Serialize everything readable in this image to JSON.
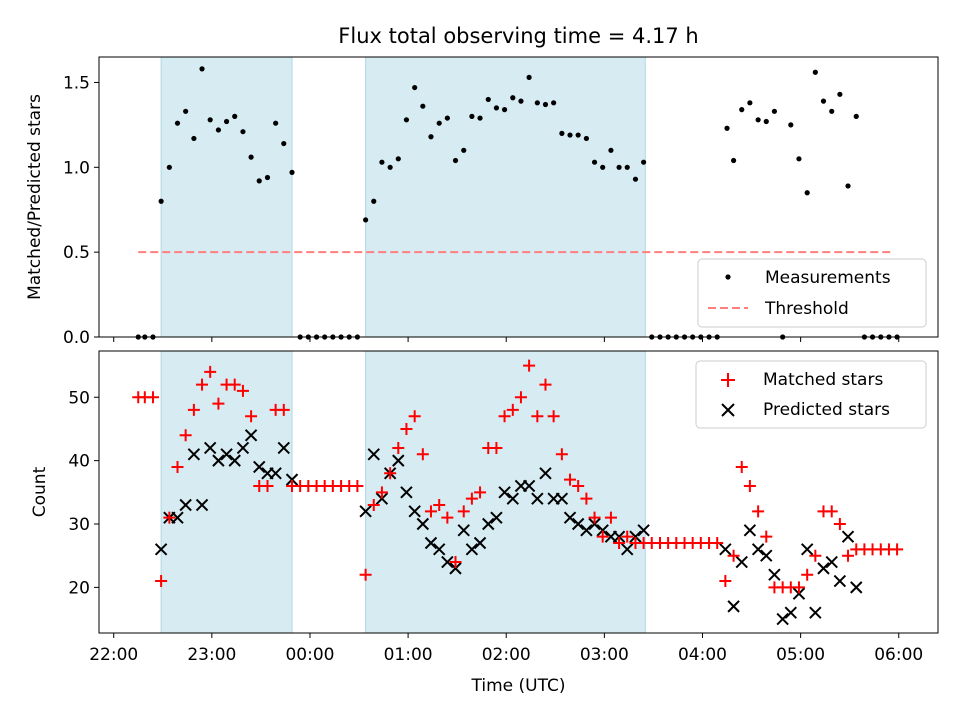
{
  "chart_data": [
    {
      "type": "scatter",
      "title": "Flux total observing time = 4.17 h",
      "xlabel": "",
      "ylabel": "Matched/Predicted stars",
      "xlim_hours": [
        21.85,
        30.4
      ],
      "ylim": [
        0,
        1.65
      ],
      "xticks": [
        22,
        23,
        24,
        25,
        26,
        27,
        28,
        29,
        30
      ],
      "yticks": [
        0.0,
        0.5,
        1.0,
        1.5
      ],
      "ytick_labels": [
        "0.0",
        "0.5",
        "1.0",
        "1.5"
      ],
      "observing_windows_hours": [
        [
          22.483,
          23.817
        ],
        [
          24.567,
          27.417
        ]
      ],
      "threshold": {
        "y": 0.5,
        "x_range": [
          22.25,
          29.95
        ],
        "color": "#ff7f7f"
      },
      "legend": {
        "position": "lower-right",
        "entries": [
          "Measurements",
          "Threshold"
        ]
      },
      "series": [
        {
          "name": "Measurements",
          "color": "#000000",
          "x": [
            22.25,
            22.317,
            22.4,
            22.483,
            22.567,
            22.65,
            22.733,
            22.817,
            22.9,
            22.983,
            23.067,
            23.15,
            23.233,
            23.317,
            23.4,
            23.483,
            23.567,
            23.65,
            23.733,
            23.817,
            23.9,
            23.983,
            24.067,
            24.15,
            24.233,
            24.317,
            24.4,
            24.483,
            24.567,
            24.65,
            24.733,
            24.817,
            24.9,
            24.983,
            25.067,
            25.15,
            25.233,
            25.317,
            25.4,
            25.483,
            25.567,
            25.65,
            25.733,
            25.817,
            25.9,
            25.983,
            26.067,
            26.15,
            26.233,
            26.317,
            26.4,
            26.483,
            26.567,
            26.65,
            26.733,
            26.817,
            26.9,
            26.983,
            27.067,
            27.15,
            27.233,
            27.317,
            27.4,
            27.483,
            27.567,
            27.65,
            27.733,
            27.817,
            27.9,
            27.983,
            28.067,
            28.15,
            28.25,
            28.317,
            28.4,
            28.483,
            28.567,
            28.65,
            28.733,
            28.817,
            28.9,
            28.983,
            29.067,
            29.15,
            29.233,
            29.317,
            29.4,
            29.483,
            29.567,
            29.65,
            29.733,
            29.817,
            29.9,
            29.983
          ],
          "y": [
            0,
            0,
            0,
            0.8,
            1.0,
            1.26,
            1.33,
            1.17,
            1.58,
            1.28,
            1.22,
            1.27,
            1.3,
            1.21,
            1.06,
            0.92,
            0.94,
            1.26,
            1.14,
            0.97,
            0,
            0,
            0,
            0,
            0,
            0,
            0,
            0,
            0.69,
            0.8,
            1.03,
            1.0,
            1.05,
            1.28,
            1.47,
            1.36,
            1.18,
            1.26,
            1.29,
            1.04,
            1.1,
            1.3,
            1.29,
            1.4,
            1.35,
            1.34,
            1.41,
            1.39,
            1.53,
            1.38,
            1.37,
            1.38,
            1.2,
            1.19,
            1.19,
            1.17,
            1.03,
            1.0,
            1.1,
            1.0,
            1.0,
            0.93,
            1.03,
            0,
            0,
            0,
            0,
            0,
            0,
            0,
            0,
            0,
            1.23,
            1.04,
            1.34,
            1.38,
            1.28,
            1.27,
            1.33,
            0,
            1.25,
            1.05,
            0.85,
            1.56,
            1.39,
            1.33,
            1.43,
            0.89,
            1.3,
            0,
            0,
            0,
            0,
            0
          ]
        }
      ]
    },
    {
      "type": "scatter",
      "title": "",
      "xlabel": "Time (UTC)",
      "ylabel": "Count",
      "xlim_hours": [
        21.85,
        30.4
      ],
      "ylim": [
        12.8,
        57.3
      ],
      "xticks": [
        22,
        23,
        24,
        25,
        26,
        27,
        28,
        29,
        30
      ],
      "xtick_labels": [
        "22:00",
        "23:00",
        "00:00",
        "01:00",
        "02:00",
        "03:00",
        "04:00",
        "05:00",
        "06:00"
      ],
      "yticks": [
        20,
        30,
        40,
        50
      ],
      "ytick_labels": [
        "20",
        "30",
        "40",
        "50"
      ],
      "observing_windows_hours": [
        [
          22.483,
          23.817
        ],
        [
          24.567,
          27.417
        ]
      ],
      "legend": {
        "position": "top-right",
        "entries": [
          "Matched stars",
          "Predicted stars"
        ]
      },
      "series": [
        {
          "name": "Matched stars",
          "marker": "+",
          "color": "#ff0000",
          "x": [
            22.25,
            22.317,
            22.4,
            22.483,
            22.567,
            22.65,
            22.733,
            22.817,
            22.9,
            22.983,
            23.067,
            23.15,
            23.233,
            23.317,
            23.4,
            23.483,
            23.567,
            23.65,
            23.733,
            23.817,
            23.9,
            23.983,
            24.067,
            24.15,
            24.233,
            24.317,
            24.4,
            24.483,
            24.567,
            24.65,
            24.733,
            24.817,
            24.9,
            24.983,
            25.067,
            25.15,
            25.233,
            25.317,
            25.4,
            25.483,
            25.567,
            25.65,
            25.733,
            25.817,
            25.9,
            25.983,
            26.067,
            26.15,
            26.233,
            26.317,
            26.4,
            26.483,
            26.567,
            26.65,
            26.733,
            26.817,
            26.9,
            26.983,
            27.067,
            27.15,
            27.233,
            27.317,
            27.4,
            27.483,
            27.567,
            27.65,
            27.733,
            27.817,
            27.9,
            27.983,
            28.067,
            28.15,
            28.233,
            28.317,
            28.4,
            28.483,
            28.567,
            28.65,
            28.733,
            28.817,
            28.9,
            28.983,
            29.067,
            29.15,
            29.233,
            29.317,
            29.4,
            29.483,
            29.567,
            29.65,
            29.733,
            29.817,
            29.9,
            29.983
          ],
          "y": [
            50,
            50,
            50,
            21,
            31,
            39,
            44,
            48,
            52,
            54,
            49,
            52,
            52,
            51,
            47,
            36,
            36,
            48,
            48,
            36,
            36,
            36,
            36,
            36,
            36,
            36,
            36,
            36,
            22,
            33,
            35,
            38,
            42,
            45,
            47,
            41,
            32,
            33,
            31,
            24,
            32,
            34,
            35,
            42,
            42,
            47,
            48,
            50,
            55,
            47,
            52,
            47,
            41,
            37,
            36,
            34,
            31,
            28,
            31,
            27,
            28,
            27,
            27,
            27,
            27,
            27,
            27,
            27,
            27,
            27,
            27,
            27,
            21,
            25,
            39,
            36,
            32,
            28,
            20,
            20,
            20,
            20,
            22,
            25,
            32,
            32,
            30,
            25,
            26,
            26,
            26,
            26,
            26,
            26
          ]
        },
        {
          "name": "Predicted stars",
          "marker": "x",
          "color": "#000000",
          "x": [
            22.483,
            22.567,
            22.65,
            22.733,
            22.817,
            22.9,
            22.983,
            23.067,
            23.15,
            23.233,
            23.317,
            23.4,
            23.483,
            23.567,
            23.65,
            23.733,
            23.817,
            24.567,
            24.65,
            24.733,
            24.817,
            24.9,
            24.983,
            25.067,
            25.15,
            25.233,
            25.317,
            25.4,
            25.483,
            25.567,
            25.65,
            25.733,
            25.817,
            25.9,
            25.983,
            26.067,
            26.15,
            26.233,
            26.317,
            26.4,
            26.483,
            26.567,
            26.65,
            26.733,
            26.817,
            26.9,
            26.983,
            27.067,
            27.15,
            27.233,
            27.317,
            27.4,
            28.233,
            28.317,
            28.4,
            28.483,
            28.567,
            28.65,
            28.733,
            28.817,
            28.9,
            28.983,
            29.067,
            29.15,
            29.233,
            29.317,
            29.4,
            29.483,
            29.567
          ],
          "y": [
            26,
            31,
            31,
            33,
            41,
            33,
            42,
            40,
            41,
            40,
            42,
            44,
            39,
            38,
            38,
            42,
            37,
            32,
            41,
            34,
            38,
            40,
            35,
            32,
            30,
            27,
            26,
            24,
            23,
            29,
            26,
            27,
            30,
            31,
            35,
            34,
            36,
            36,
            34,
            38,
            34,
            34,
            31,
            30,
            29,
            30,
            29,
            28,
            28,
            26,
            28,
            29,
            26,
            17,
            24,
            29,
            26,
            25,
            22,
            15,
            16,
            19,
            26,
            16,
            23,
            24,
            21,
            28,
            20
          ]
        }
      ]
    }
  ]
}
